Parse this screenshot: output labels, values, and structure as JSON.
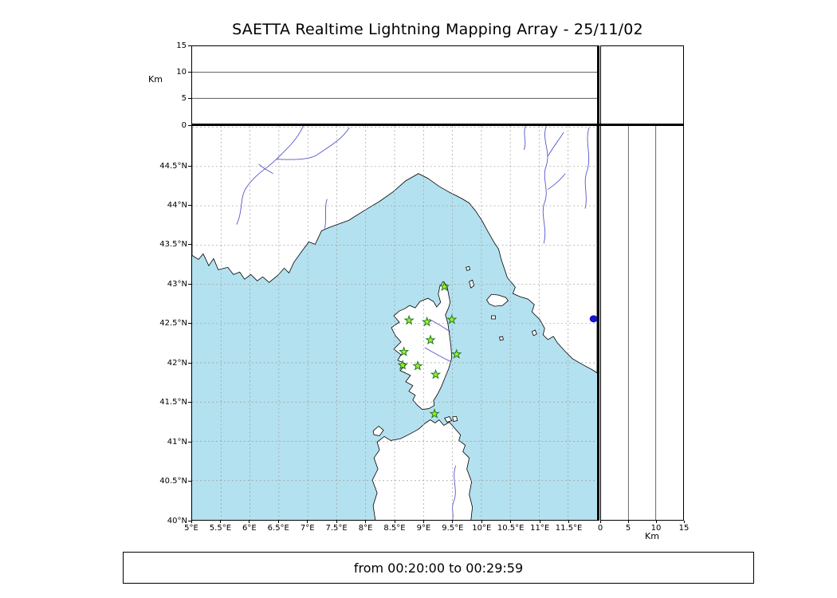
{
  "title": "SAETTA Realtime Lightning Mapping Array - 25/11/02",
  "status_text": "from 00:20:00 to 00:29:59",
  "km_axis": {
    "label": "Km",
    "ticks": [
      0,
      5,
      10,
      15
    ],
    "max": 15,
    "gridlines": [
      5,
      10
    ]
  },
  "map": {
    "lon_range": [
      5,
      12
    ],
    "lat_range": [
      40,
      45.016
    ],
    "grid_step": 0.5,
    "lon_ticks": [
      {
        "value": 5,
        "label": "5°E"
      },
      {
        "value": 5.5,
        "label": "5.5°E"
      },
      {
        "value": 6,
        "label": "6°E"
      },
      {
        "value": 6.5,
        "label": "6.5°E"
      },
      {
        "value": 7,
        "label": "7°E"
      },
      {
        "value": 7.5,
        "label": "7.5°E"
      },
      {
        "value": 8,
        "label": "8°E"
      },
      {
        "value": 8.5,
        "label": "8.5°E"
      },
      {
        "value": 9,
        "label": "9°E"
      },
      {
        "value": 9.5,
        "label": "9.5°E"
      },
      {
        "value": 10,
        "label": "10°E"
      },
      {
        "value": 10.5,
        "label": "10.5°E"
      },
      {
        "value": 11,
        "label": "11°E"
      },
      {
        "value": 11.5,
        "label": "11.5°E"
      }
    ],
    "lat_ticks": [
      {
        "value": 44.5,
        "label": "44.5°N"
      },
      {
        "value": 44,
        "label": "44°N"
      },
      {
        "value": 43.5,
        "label": "43.5°N"
      },
      {
        "value": 43,
        "label": "43°N"
      },
      {
        "value": 42.5,
        "label": "42.5°N"
      },
      {
        "value": 42,
        "label": "42°N"
      },
      {
        "value": 41.5,
        "label": "41.5°N"
      },
      {
        "value": 41,
        "label": "41°N"
      },
      {
        "value": 40.5,
        "label": "40.5°N"
      },
      {
        "value": 40,
        "label": "40°N"
      }
    ]
  },
  "chart_data": {
    "type": "scatter",
    "title": "SAETTA Realtime Lightning Mapping Array - 25/11/02",
    "time_window": "from 00:20:00 to 00:29:59",
    "x_axis": {
      "units": "longitude_deg_E",
      "range": [
        5,
        12
      ]
    },
    "y_axis": {
      "units": "latitude_deg_N",
      "range": [
        40,
        45.016
      ]
    },
    "altitude_axis": {
      "units": "Km",
      "range": [
        0,
        15
      ],
      "ticks": [
        0,
        5,
        10,
        15
      ]
    },
    "stations_lon_lat": [
      [
        9.36,
        42.97
      ],
      [
        8.75,
        42.54
      ],
      [
        9.06,
        42.52
      ],
      [
        9.49,
        42.55
      ],
      [
        9.12,
        42.29
      ],
      [
        8.66,
        42.14
      ],
      [
        9.57,
        42.11
      ],
      [
        8.64,
        41.97
      ],
      [
        8.9,
        41.96
      ],
      [
        9.21,
        41.85
      ],
      [
        9.19,
        41.35
      ]
    ],
    "lightning_points": [],
    "lake_marker_lon_lat": [
      11.94,
      42.56
    ]
  },
  "colors": {
    "sea": "#b4e1ef",
    "land": "#ffffff",
    "coast": "#000000",
    "river": "#5555cc",
    "grid": "#999999",
    "station_fill": "#aaee22",
    "station_stroke": "#1f7a1f",
    "lake": "#1515cc"
  }
}
